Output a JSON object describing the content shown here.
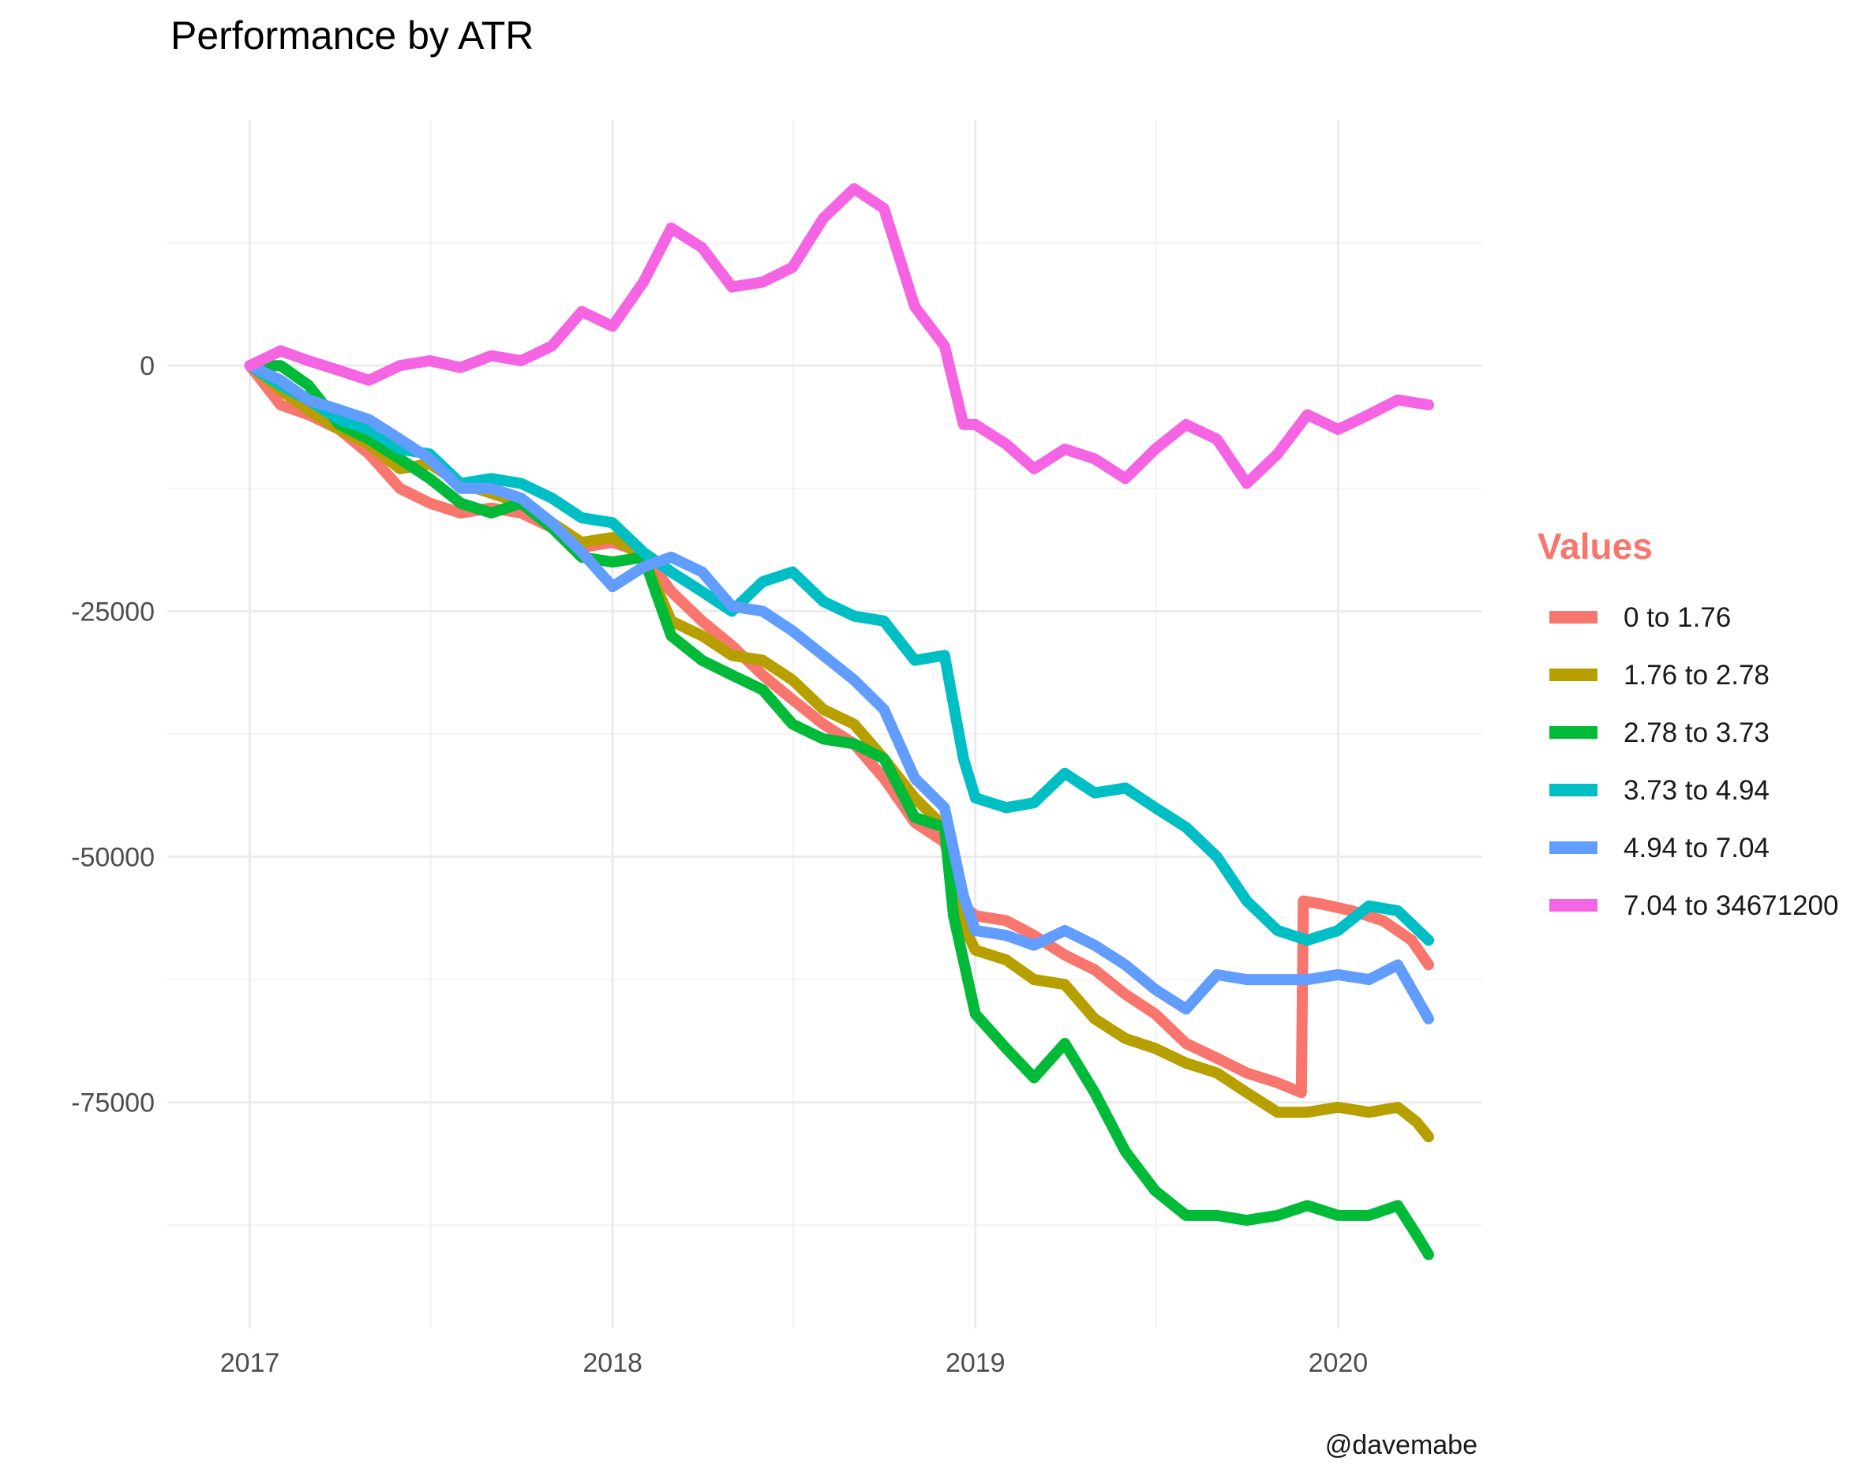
{
  "chart_data": {
    "type": "line",
    "title": "Performance by ATR",
    "xlabel": "",
    "ylabel": "",
    "caption": "@davemabe",
    "legend_title": "Values",
    "legend_title_color": "#F8766D",
    "legend_position": "right",
    "grid": true,
    "x_ticks": [
      "2017",
      "2018",
      "2019",
      "2020"
    ],
    "y_ticks": [
      "-75000",
      "-50000",
      "-25000",
      "0"
    ],
    "y_tick_values": [
      -75000,
      -50000,
      -25000,
      0
    ],
    "xlim": [
      "2016-10-10",
      "2020-05-25"
    ],
    "ylim": [
      -98000,
      25000
    ],
    "series": [
      {
        "name": "0 to 1.76",
        "color": "#F8766D",
        "points": [
          [
            "2017-01-01",
            0
          ],
          [
            "2017-02-01",
            -4000
          ],
          [
            "2017-03-01",
            -5000
          ],
          [
            "2017-04-01",
            -6500
          ],
          [
            "2017-05-01",
            -9000
          ],
          [
            "2017-06-01",
            -12500
          ],
          [
            "2017-07-01",
            -14000
          ],
          [
            "2017-08-01",
            -15000
          ],
          [
            "2017-09-01",
            -14500
          ],
          [
            "2017-10-01",
            -15000
          ],
          [
            "2017-11-01",
            -16500
          ],
          [
            "2017-12-01",
            -18500
          ],
          [
            "2018-01-01",
            -18000
          ],
          [
            "2018-02-01",
            -19000
          ],
          [
            "2018-03-01",
            -23000
          ],
          [
            "2018-04-01",
            -26000
          ],
          [
            "2018-05-01",
            -28500
          ],
          [
            "2018-06-01",
            -31500
          ],
          [
            "2018-07-01",
            -34000
          ],
          [
            "2018-08-01",
            -36500
          ],
          [
            "2018-09-01",
            -38500
          ],
          [
            "2018-10-01",
            -42000
          ],
          [
            "2018-11-01",
            -46500
          ],
          [
            "2018-12-01",
            -48500
          ],
          [
            "2018-12-20",
            -55000
          ],
          [
            "2019-01-01",
            -56000
          ],
          [
            "2019-02-01",
            -56500
          ],
          [
            "2019-03-01",
            -58000
          ],
          [
            "2019-04-01",
            -60000
          ],
          [
            "2019-05-01",
            -61500
          ],
          [
            "2019-06-01",
            -64000
          ],
          [
            "2019-07-01",
            -66000
          ],
          [
            "2019-08-01",
            -69000
          ],
          [
            "2019-09-01",
            -70500
          ],
          [
            "2019-10-01",
            -72000
          ],
          [
            "2019-11-01",
            -73000
          ],
          [
            "2019-11-25",
            -74000
          ],
          [
            "2019-11-27",
            -54500
          ],
          [
            "2019-12-15",
            -54800
          ],
          [
            "2020-01-15",
            -55500
          ],
          [
            "2020-02-15",
            -56500
          ],
          [
            "2020-03-15",
            -58500
          ],
          [
            "2020-04-01",
            -61000
          ]
        ]
      },
      {
        "name": "1.76 to 2.78",
        "color": "#B79F00",
        "points": [
          [
            "2017-01-01",
            0
          ],
          [
            "2017-02-01",
            -2500
          ],
          [
            "2017-03-01",
            -4500
          ],
          [
            "2017-04-01",
            -6500
          ],
          [
            "2017-05-01",
            -8000
          ],
          [
            "2017-06-01",
            -10500
          ],
          [
            "2017-07-01",
            -10000
          ],
          [
            "2017-08-01",
            -12000
          ],
          [
            "2017-09-01",
            -13000
          ],
          [
            "2017-10-01",
            -14000
          ],
          [
            "2017-11-01",
            -16000
          ],
          [
            "2017-12-01",
            -18000
          ],
          [
            "2018-01-01",
            -17500
          ],
          [
            "2018-02-01",
            -19500
          ],
          [
            "2018-03-01",
            -26000
          ],
          [
            "2018-04-01",
            -27500
          ],
          [
            "2018-05-01",
            -29500
          ],
          [
            "2018-06-01",
            -30000
          ],
          [
            "2018-07-01",
            -32000
          ],
          [
            "2018-08-01",
            -35000
          ],
          [
            "2018-09-01",
            -36500
          ],
          [
            "2018-10-01",
            -40000
          ],
          [
            "2018-11-01",
            -44000
          ],
          [
            "2018-12-01",
            -47000
          ],
          [
            "2018-12-20",
            -57000
          ],
          [
            "2019-01-01",
            -59500
          ],
          [
            "2019-02-01",
            -60500
          ],
          [
            "2019-03-01",
            -62500
          ],
          [
            "2019-04-01",
            -63000
          ],
          [
            "2019-05-01",
            -66500
          ],
          [
            "2019-06-01",
            -68500
          ],
          [
            "2019-07-01",
            -69500
          ],
          [
            "2019-08-01",
            -71000
          ],
          [
            "2019-09-01",
            -72000
          ],
          [
            "2019-10-01",
            -74000
          ],
          [
            "2019-11-01",
            -76000
          ],
          [
            "2019-12-01",
            -76000
          ],
          [
            "2020-01-01",
            -75500
          ],
          [
            "2020-02-01",
            -76000
          ],
          [
            "2020-03-01",
            -75500
          ],
          [
            "2020-03-20",
            -77000
          ],
          [
            "2020-04-01",
            -78500
          ]
        ]
      },
      {
        "name": "2.78 to 3.73",
        "color": "#00BA38",
        "points": [
          [
            "2017-01-01",
            0
          ],
          [
            "2017-02-01",
            0
          ],
          [
            "2017-03-01",
            -2000
          ],
          [
            "2017-04-01",
            -6000
          ],
          [
            "2017-05-01",
            -7500
          ],
          [
            "2017-06-01",
            -9500
          ],
          [
            "2017-07-01",
            -11500
          ],
          [
            "2017-08-01",
            -14000
          ],
          [
            "2017-09-01",
            -15000
          ],
          [
            "2017-10-01",
            -14000
          ],
          [
            "2017-11-01",
            -16500
          ],
          [
            "2017-12-01",
            -19500
          ],
          [
            "2018-01-01",
            -20000
          ],
          [
            "2018-02-01",
            -19500
          ],
          [
            "2018-03-01",
            -27500
          ],
          [
            "2018-04-01",
            -30000
          ],
          [
            "2018-05-01",
            -31500
          ],
          [
            "2018-06-01",
            -33000
          ],
          [
            "2018-07-01",
            -36500
          ],
          [
            "2018-08-01",
            -38000
          ],
          [
            "2018-09-01",
            -38500
          ],
          [
            "2018-10-01",
            -40000
          ],
          [
            "2018-11-01",
            -46000
          ],
          [
            "2018-12-01",
            -47000
          ],
          [
            "2018-12-10",
            -56000
          ],
          [
            "2019-01-01",
            -66000
          ],
          [
            "2019-02-01",
            -69500
          ],
          [
            "2019-03-01",
            -72500
          ],
          [
            "2019-04-01",
            -69000
          ],
          [
            "2019-05-01",
            -74000
          ],
          [
            "2019-06-01",
            -80000
          ],
          [
            "2019-07-01",
            -84000
          ],
          [
            "2019-08-01",
            -86500
          ],
          [
            "2019-09-01",
            -86500
          ],
          [
            "2019-10-01",
            -87000
          ],
          [
            "2019-11-01",
            -86500
          ],
          [
            "2019-12-01",
            -85500
          ],
          [
            "2020-01-01",
            -86500
          ],
          [
            "2020-02-01",
            -86500
          ],
          [
            "2020-03-01",
            -85500
          ],
          [
            "2020-03-20",
            -88500
          ],
          [
            "2020-04-01",
            -90500
          ]
        ]
      },
      {
        "name": "3.73 to 4.94",
        "color": "#00BFC4",
        "points": [
          [
            "2017-01-01",
            0
          ],
          [
            "2017-02-01",
            -2000
          ],
          [
            "2017-03-01",
            -3500
          ],
          [
            "2017-04-01",
            -5500
          ],
          [
            "2017-05-01",
            -6500
          ],
          [
            "2017-06-01",
            -8500
          ],
          [
            "2017-07-01",
            -9000
          ],
          [
            "2017-08-01",
            -12000
          ],
          [
            "2017-09-01",
            -11500
          ],
          [
            "2017-10-01",
            -12000
          ],
          [
            "2017-11-01",
            -13500
          ],
          [
            "2017-12-01",
            -15500
          ],
          [
            "2018-01-01",
            -16000
          ],
          [
            "2018-02-01",
            -19000
          ],
          [
            "2018-03-01",
            -21000
          ],
          [
            "2018-04-01",
            -23000
          ],
          [
            "2018-05-01",
            -25000
          ],
          [
            "2018-06-01",
            -22000
          ],
          [
            "2018-07-01",
            -21000
          ],
          [
            "2018-08-01",
            -24000
          ],
          [
            "2018-09-01",
            -25500
          ],
          [
            "2018-10-01",
            -26000
          ],
          [
            "2018-11-01",
            -30000
          ],
          [
            "2018-12-01",
            -29500
          ],
          [
            "2018-12-20",
            -40000
          ],
          [
            "2019-01-01",
            -44000
          ],
          [
            "2019-02-01",
            -45000
          ],
          [
            "2019-03-01",
            -44500
          ],
          [
            "2019-04-01",
            -41500
          ],
          [
            "2019-05-01",
            -43500
          ],
          [
            "2019-06-01",
            -43000
          ],
          [
            "2019-07-01",
            -45000
          ],
          [
            "2019-08-01",
            -47000
          ],
          [
            "2019-09-01",
            -50000
          ],
          [
            "2019-10-01",
            -54500
          ],
          [
            "2019-11-01",
            -57500
          ],
          [
            "2019-12-01",
            -58500
          ],
          [
            "2020-01-01",
            -57500
          ],
          [
            "2020-02-01",
            -55000
          ],
          [
            "2020-03-01",
            -55500
          ],
          [
            "2020-04-01",
            -58500
          ]
        ]
      },
      {
        "name": "4.94 to 7.04",
        "color": "#619CFF",
        "points": [
          [
            "2017-01-01",
            0
          ],
          [
            "2017-02-01",
            -1500
          ],
          [
            "2017-03-01",
            -3500
          ],
          [
            "2017-04-01",
            -4500
          ],
          [
            "2017-05-01",
            -5500
          ],
          [
            "2017-06-01",
            -7500
          ],
          [
            "2017-07-01",
            -9500
          ],
          [
            "2017-08-01",
            -12500
          ],
          [
            "2017-09-01",
            -12500
          ],
          [
            "2017-10-01",
            -13500
          ],
          [
            "2017-11-01",
            -16000
          ],
          [
            "2017-12-01",
            -19000
          ],
          [
            "2018-01-01",
            -22500
          ],
          [
            "2018-02-01",
            -20500
          ],
          [
            "2018-03-01",
            -19500
          ],
          [
            "2018-04-01",
            -21000
          ],
          [
            "2018-05-01",
            -24500
          ],
          [
            "2018-06-01",
            -25000
          ],
          [
            "2018-07-01",
            -27000
          ],
          [
            "2018-08-01",
            -29500
          ],
          [
            "2018-09-01",
            -32000
          ],
          [
            "2018-10-01",
            -35000
          ],
          [
            "2018-11-01",
            -42000
          ],
          [
            "2018-12-01",
            -45000
          ],
          [
            "2018-12-20",
            -54000
          ],
          [
            "2019-01-01",
            -57500
          ],
          [
            "2019-02-01",
            -58000
          ],
          [
            "2019-03-01",
            -59000
          ],
          [
            "2019-04-01",
            -57500
          ],
          [
            "2019-05-01",
            -59000
          ],
          [
            "2019-06-01",
            -61000
          ],
          [
            "2019-07-01",
            -63500
          ],
          [
            "2019-08-01",
            -65500
          ],
          [
            "2019-09-01",
            -62000
          ],
          [
            "2019-10-01",
            -62500
          ],
          [
            "2019-11-01",
            -62500
          ],
          [
            "2019-12-01",
            -62500
          ],
          [
            "2020-01-01",
            -62000
          ],
          [
            "2020-02-01",
            -62500
          ],
          [
            "2020-03-01",
            -61000
          ],
          [
            "2020-04-01",
            -66500
          ]
        ]
      },
      {
        "name": "7.04 to 34671200",
        "color": "#F564E3",
        "points": [
          [
            "2017-01-01",
            0
          ],
          [
            "2017-02-01",
            1500
          ],
          [
            "2017-03-01",
            500
          ],
          [
            "2017-04-01",
            -500
          ],
          [
            "2017-05-01",
            -1500
          ],
          [
            "2017-06-01",
            0
          ],
          [
            "2017-07-01",
            500
          ],
          [
            "2017-08-01",
            -200
          ],
          [
            "2017-09-01",
            1000
          ],
          [
            "2017-10-01",
            500
          ],
          [
            "2017-11-01",
            2000
          ],
          [
            "2017-12-01",
            5500
          ],
          [
            "2018-01-01",
            4000
          ],
          [
            "2018-02-01",
            8500
          ],
          [
            "2018-03-01",
            14000
          ],
          [
            "2018-04-01",
            12000
          ],
          [
            "2018-05-01",
            8000
          ],
          [
            "2018-06-01",
            8500
          ],
          [
            "2018-07-01",
            10000
          ],
          [
            "2018-08-01",
            15000
          ],
          [
            "2018-09-01",
            18000
          ],
          [
            "2018-10-01",
            16000
          ],
          [
            "2018-11-01",
            6000
          ],
          [
            "2018-12-01",
            2000
          ],
          [
            "2018-12-20",
            -6000
          ],
          [
            "2019-01-01",
            -6000
          ],
          [
            "2019-02-01",
            -8000
          ],
          [
            "2019-03-01",
            -10500
          ],
          [
            "2019-04-01",
            -8500
          ],
          [
            "2019-05-01",
            -9500
          ],
          [
            "2019-06-01",
            -11500
          ],
          [
            "2019-07-01",
            -8500
          ],
          [
            "2019-08-01",
            -6000
          ],
          [
            "2019-09-01",
            -7500
          ],
          [
            "2019-10-01",
            -12000
          ],
          [
            "2019-11-01",
            -9000
          ],
          [
            "2019-12-01",
            -5000
          ],
          [
            "2020-01-01",
            -6500
          ],
          [
            "2020-02-01",
            -5000
          ],
          [
            "2020-03-01",
            -3500
          ],
          [
            "2020-04-01",
            -4000
          ]
        ]
      }
    ]
  }
}
